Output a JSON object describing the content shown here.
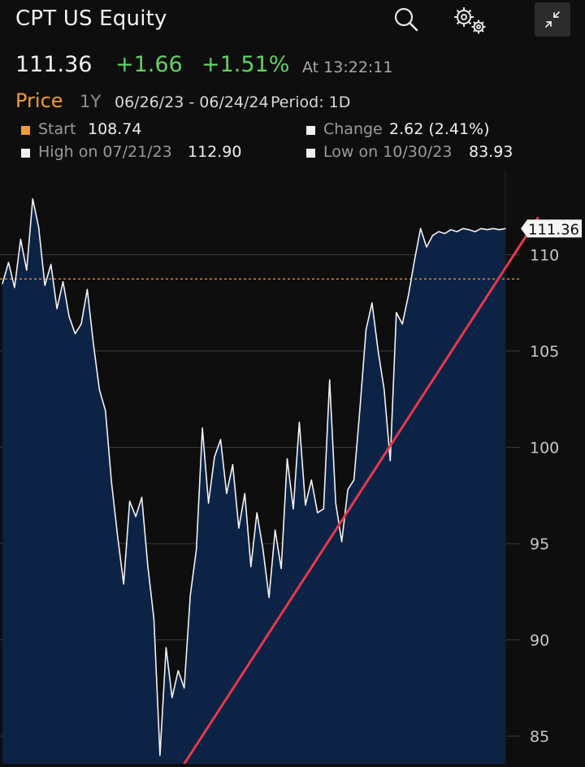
{
  "header": {
    "title": "CPT US Equity",
    "search_icon": "search-icon",
    "settings_icon": "gear-icon",
    "collapse_icon": "collapse-icon"
  },
  "quote": {
    "price": "111.36",
    "change": "+1.66",
    "change_pct": "+1.51%",
    "time": "At 13:22:11"
  },
  "subbar": {
    "price_label": "Price",
    "range": "1Y",
    "dates": "06/26/23 - 06/24/24",
    "period": "Period: 1D"
  },
  "legend": {
    "start_label": "Start",
    "start_value": "108.74",
    "change_label": "Change",
    "change_value": "2.62 (2.41%)",
    "high_label": "High on 07/21/23",
    "high_value": "112.90",
    "low_label": "Low on 10/30/23",
    "low_value": "83.93"
  },
  "colors": {
    "accent": "#f39a35",
    "positive": "#5fd35f",
    "area_fill": "#0c2346",
    "trendline": "#e8384c",
    "background": "#0e0e0f"
  },
  "chart_data": {
    "type": "area",
    "title": "",
    "xlabel": "",
    "ylabel": "",
    "ylim": [
      83.4,
      112.6
    ],
    "y_ticks": [
      85,
      90,
      95,
      100,
      105,
      110
    ],
    "y_tick_labels": [
      "85",
      "90",
      "95",
      "100",
      "105",
      "110"
    ],
    "reference_line": 108.74,
    "last_value_label": "111.36",
    "x": [
      0,
      3,
      6,
      9,
      12,
      15,
      18,
      21,
      24,
      27,
      30,
      33,
      36,
      39,
      42,
      45,
      48,
      51,
      54,
      57,
      60,
      63,
      66,
      69,
      72,
      75,
      78,
      81,
      84,
      87,
      90,
      93,
      96,
      99,
      102,
      105,
      108,
      111,
      114,
      117,
      120,
      123,
      126,
      129,
      132,
      135,
      138,
      141,
      144,
      147,
      150,
      153,
      156,
      159,
      162,
      165,
      168,
      171,
      174,
      177,
      180,
      183,
      186,
      189,
      192,
      195,
      198,
      201,
      204,
      207,
      210,
      213,
      216,
      219,
      222,
      225,
      228,
      231,
      234,
      237,
      240,
      243,
      246,
      249
    ],
    "values": [
      108.5,
      109.6,
      108.3,
      110.8,
      109.2,
      112.9,
      111.4,
      108.4,
      109.5,
      107.2,
      108.6,
      106.8,
      105.9,
      106.4,
      108.2,
      105.4,
      103.0,
      101.9,
      98.2,
      95.4,
      92.9,
      97.2,
      96.4,
      97.4,
      93.8,
      91.1,
      84.0,
      89.6,
      87.0,
      88.4,
      87.5,
      92.3,
      94.7,
      101.0,
      97.1,
      99.5,
      100.4,
      97.6,
      99.1,
      95.8,
      97.6,
      93.8,
      96.6,
      94.7,
      92.2,
      95.7,
      93.7,
      99.4,
      96.8,
      101.3,
      97.0,
      98.3,
      96.6,
      96.8,
      103.5,
      97.1,
      95.1,
      97.8,
      98.3,
      102.0,
      106.1,
      107.5,
      105.0,
      103.0,
      99.3,
      107.0,
      106.4,
      107.9,
      109.7,
      111.36,
      110.4,
      111.0,
      111.2,
      111.1,
      111.3,
      111.2,
      111.36,
      111.3,
      111.2,
      111.36,
      111.3,
      111.36,
      111.3,
      111.36
    ],
    "trendline": {
      "from": [
        89,
        83.4
      ],
      "to": [
        265,
        111.9
      ]
    },
    "grid": true,
    "legend_position": "top"
  }
}
